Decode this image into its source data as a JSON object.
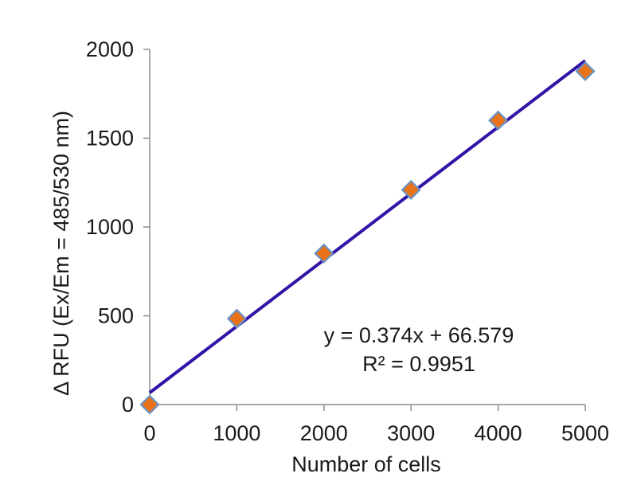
{
  "chart_data": {
    "type": "scatter",
    "title": "",
    "xlabel": "Number of cells",
    "ylabel": "Δ RFU (Ex/Em = 485/530 nm)",
    "xlim": [
      0,
      5000
    ],
    "ylim": [
      0,
      2000
    ],
    "xticks": [
      0,
      1000,
      2000,
      3000,
      4000,
      5000
    ],
    "yticks": [
      0,
      500,
      1000,
      1500,
      2000
    ],
    "grid": false,
    "legend": "none",
    "series": [
      {
        "name": "Δ RFU",
        "marker": "diamond",
        "color": "#e8731a",
        "edge_color": "#6a93c3",
        "x": [
          0,
          1000,
          2000,
          3000,
          4000,
          5000
        ],
        "y": [
          0,
          484,
          851,
          1209,
          1600,
          1877
        ]
      }
    ],
    "trendline": {
      "type": "linear",
      "slope": 0.374,
      "intercept": 66.579,
      "color": "#3314a6",
      "equation": "y = 0.374x + 66.579",
      "r_squared": "R² = 0.9951"
    }
  }
}
